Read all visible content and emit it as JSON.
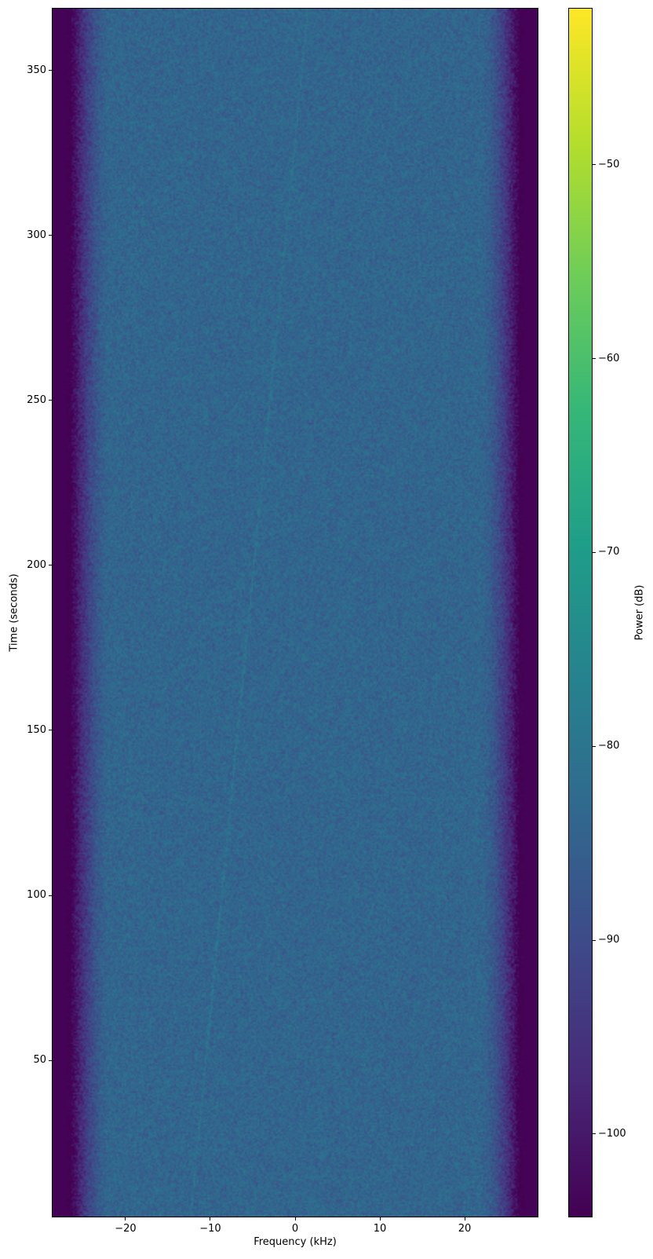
{
  "chart_data": {
    "type": "heatmap",
    "subtype": "spectrogram",
    "title": "",
    "xlabel": "Frequency (kHz)",
    "ylabel": "Time (seconds)",
    "colorbar_label": "Power (dB)",
    "colormap": "viridis",
    "xlim": [
      -28.7,
      28.7
    ],
    "ylim": [
      2.4,
      369
    ],
    "clim": [
      -104.3,
      -41.9
    ],
    "xticks": [
      -20,
      -10,
      0,
      10,
      20
    ],
    "xtick_labels": [
      "−20",
      "−10",
      "0",
      "10",
      "20"
    ],
    "yticks": [
      50,
      100,
      150,
      200,
      250,
      300,
      350
    ],
    "ytick_labels": [
      "50",
      "100",
      "150",
      "200",
      "250",
      "300",
      "350"
    ],
    "cticks": [
      -100,
      -90,
      -80,
      -70,
      -60,
      -50
    ],
    "ctick_labels": [
      "−100",
      "−90",
      "−80",
      "−70",
      "−60",
      "−50"
    ],
    "passband_level_db": -84,
    "edge_level_db": -104,
    "passband_edge_khz": 22,
    "stopband_edge_khz": 26.5,
    "faint_drifting_tone": {
      "start": {
        "time": 0,
        "freq_khz": -12.5
      },
      "end": {
        "time": 369,
        "freq_khz": 1.5
      }
    },
    "grid": false
  }
}
